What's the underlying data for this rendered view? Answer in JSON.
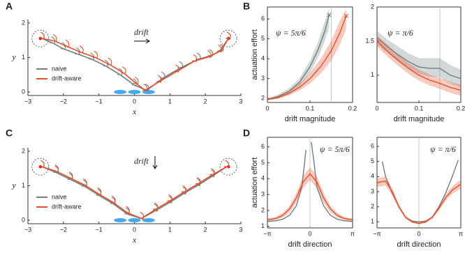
{
  "chart_data": [
    {
      "type": "trajectory",
      "panel": "A",
      "xlabel": "x",
      "ylabel": "y",
      "annotation": "drift",
      "legend": "lower left",
      "xlim": [
        -3,
        3
      ],
      "ylim": [
        -0.1,
        2.1
      ],
      "xticks": [
        {
          "value": -3,
          "label": "−3"
        },
        {
          "value": -2,
          "label": "−2"
        },
        {
          "value": -1,
          "label": "−1"
        },
        0,
        1,
        2,
        3
      ],
      "yticks": [
        0,
        1,
        2
      ],
      "targets": {
        "x": [
          -2.65,
          2.65
        ],
        "y": [
          1.55,
          1.55
        ]
      },
      "series": [
        {
          "name": "naive",
          "color": "#6e7f80",
          "x": [
            -2.6,
            -2.3,
            -2.0,
            -1.6,
            -1.2,
            -0.8,
            -0.4,
            0.0,
            0.35,
            0.8,
            1.3,
            1.8,
            2.15,
            2.45,
            2.65
          ],
          "values": [
            1.55,
            1.42,
            1.25,
            1.1,
            0.95,
            0.75,
            0.5,
            0.2,
            0.05,
            0.4,
            0.7,
            0.95,
            1.05,
            1.2,
            1.55
          ]
        },
        {
          "name": "drift-aware",
          "color": "#e2502b",
          "x": [
            -2.6,
            -2.25,
            -1.9,
            -1.5,
            -1.1,
            -0.7,
            -0.3,
            0.05,
            0.3,
            0.7,
            1.2,
            1.7,
            2.1,
            2.4,
            2.65
          ],
          "values": [
            1.55,
            1.48,
            1.32,
            1.15,
            1.0,
            0.8,
            0.55,
            0.25,
            0.05,
            0.3,
            0.6,
            0.9,
            1.02,
            1.18,
            1.55
          ]
        }
      ]
    },
    {
      "type": "line",
      "panel": "B",
      "xlabel": "drift magnitude",
      "ylabel": "actuation effort",
      "annotation": "ψ = 5π/6",
      "xlim": [
        0,
        0.2
      ],
      "ylim": [
        1.8,
        6.6
      ],
      "xticks": [
        0,
        0.1,
        0.2
      ],
      "yticks": [
        2,
        3,
        4,
        5,
        6
      ],
      "vline": 0.15,
      "series": [
        {
          "name": "naive",
          "color": "#6e7f80",
          "marker": "x",
          "x": [
            0,
            0.025,
            0.05,
            0.075,
            0.1,
            0.12,
            0.135,
            0.145
          ],
          "values": [
            1.95,
            2.1,
            2.35,
            2.8,
            3.6,
            4.5,
            5.4,
            6.2
          ],
          "lower": [
            1.9,
            2.0,
            2.2,
            2.6,
            3.3,
            4.1,
            4.9,
            5.6
          ],
          "upper": [
            2.0,
            2.2,
            2.5,
            3.0,
            3.9,
            4.9,
            5.9,
            6.5
          ]
        },
        {
          "name": "drift-aware",
          "color": "#e2502b",
          "marker": "x",
          "x": [
            0,
            0.025,
            0.05,
            0.075,
            0.1,
            0.125,
            0.15,
            0.17,
            0.185
          ],
          "values": [
            1.95,
            2.05,
            2.25,
            2.55,
            3.0,
            3.6,
            4.4,
            5.3,
            6.15
          ],
          "lower": [
            1.9,
            1.98,
            2.15,
            2.4,
            2.75,
            3.25,
            3.9,
            4.7,
            5.5
          ],
          "upper": [
            2.0,
            2.12,
            2.38,
            2.75,
            3.3,
            4.0,
            4.9,
            5.9,
            6.5
          ]
        }
      ]
    },
    {
      "type": "line",
      "panel": null,
      "xlabel": "drift magnitude",
      "ylabel": null,
      "annotation": "ψ = π/6",
      "xlim": [
        0,
        0.2
      ],
      "ylim": [
        0.6,
        2
      ],
      "xticks": [
        0,
        0.1,
        0.2
      ],
      "yticks": [
        1,
        1.5,
        2
      ],
      "vline": 0.15,
      "series": [
        {
          "name": "naive",
          "color": "#6e7f80",
          "x": [
            0,
            0.025,
            0.05,
            0.075,
            0.1,
            0.125,
            0.15,
            0.175,
            0.2
          ],
          "values": [
            1.55,
            1.42,
            1.3,
            1.2,
            1.12,
            1.1,
            1.1,
            1.0,
            0.95
          ],
          "lower": [
            1.45,
            1.33,
            1.2,
            1.1,
            1.02,
            0.98,
            0.97,
            0.88,
            0.82
          ],
          "upper": [
            1.65,
            1.52,
            1.42,
            1.32,
            1.25,
            1.25,
            1.25,
            1.15,
            1.08
          ]
        },
        {
          "name": "drift-aware",
          "color": "#e2502b",
          "x": [
            0,
            0.025,
            0.05,
            0.075,
            0.1,
            0.125,
            0.15,
            0.175,
            0.2
          ],
          "values": [
            1.5,
            1.35,
            1.22,
            1.1,
            1.0,
            0.93,
            0.88,
            0.82,
            0.78
          ],
          "lower": [
            1.42,
            1.27,
            1.14,
            1.02,
            0.92,
            0.85,
            0.8,
            0.74,
            0.7
          ],
          "upper": [
            1.58,
            1.44,
            1.3,
            1.18,
            1.08,
            1.01,
            0.96,
            0.9,
            0.86
          ]
        }
      ]
    },
    {
      "type": "trajectory",
      "panel": "C",
      "xlabel": "x",
      "ylabel": "y",
      "annotation": "drift",
      "legend": "lower left",
      "xlim": [
        -3,
        3
      ],
      "ylim": [
        -0.1,
        2.1
      ],
      "xticks": [
        {
          "value": -3,
          "label": "−3"
        },
        {
          "value": -2,
          "label": "−2"
        },
        {
          "value": -1,
          "label": "−1"
        },
        0,
        1,
        2,
        3
      ],
      "yticks": [
        0,
        1,
        2
      ],
      "targets": {
        "x": [
          -2.65,
          2.65
        ],
        "y": [
          1.55,
          1.55
        ]
      },
      "series": [
        {
          "name": "naive",
          "color": "#6e7f80",
          "x": [
            -2.6,
            -2.2,
            -1.8,
            -1.4,
            -1.0,
            -0.6,
            -0.2,
            0.2,
            0.6,
            1.0,
            1.4,
            1.8,
            2.2,
            2.6
          ],
          "values": [
            1.55,
            1.38,
            1.18,
            0.98,
            0.72,
            0.48,
            0.18,
            0.05,
            0.28,
            0.52,
            0.78,
            1.02,
            1.28,
            1.55
          ]
        },
        {
          "name": "drift-aware",
          "color": "#e2502b",
          "x": [
            -2.6,
            -2.2,
            -1.8,
            -1.4,
            -1.0,
            -0.6,
            -0.2,
            0.2,
            0.6,
            1.0,
            1.4,
            1.8,
            2.2,
            2.6
          ],
          "values": [
            1.55,
            1.42,
            1.22,
            1.02,
            0.76,
            0.52,
            0.22,
            0.05,
            0.32,
            0.56,
            0.82,
            1.06,
            1.32,
            1.55
          ]
        }
      ]
    },
    {
      "type": "line",
      "panel": "D",
      "xlabel": "drift direction",
      "ylabel": "actuation effort",
      "annotation": "ψ = 5π/6",
      "xlim": [
        -3.1416,
        3.1416
      ],
      "ylim": [
        0.9,
        6.6
      ],
      "xticks": [
        {
          "value": -3.1416,
          "label": "−π"
        },
        0,
        {
          "value": 3.1416,
          "label": "π"
        }
      ],
      "yticks": [
        1,
        2,
        3,
        4,
        5,
        6
      ],
      "vline": 0,
      "series": [
        {
          "name": "naive",
          "color": "#6e7f80",
          "x": [
            -3.14,
            -2.5,
            -2.0,
            -1.5,
            -1.0,
            -0.6,
            -0.4,
            -0.3,
            null,
            0.1,
            0.3,
            0.5,
            1.0,
            1.5,
            2.0,
            2.5,
            3.14
          ],
          "values": [
            1.3,
            1.35,
            1.45,
            1.7,
            2.3,
            3.5,
            5.0,
            5.8,
            null,
            6.3,
            5.0,
            3.5,
            2.3,
            1.7,
            1.45,
            1.35,
            1.3
          ]
        },
        {
          "name": "drift-aware",
          "color": "#e2502b",
          "x": [
            -3.14,
            -2.5,
            -2.0,
            -1.5,
            -1.0,
            -0.5,
            0,
            0.5,
            1.0,
            1.5,
            2.0,
            2.5,
            3.14
          ],
          "values": [
            1.4,
            1.5,
            1.7,
            2.1,
            2.8,
            3.8,
            4.3,
            3.8,
            2.8,
            2.1,
            1.7,
            1.5,
            1.4
          ],
          "lower": [
            1.3,
            1.4,
            1.55,
            1.9,
            2.5,
            3.4,
            3.9,
            3.4,
            2.5,
            1.9,
            1.55,
            1.4,
            1.3
          ],
          "upper": [
            1.5,
            1.6,
            1.85,
            2.3,
            3.1,
            4.2,
            4.7,
            4.2,
            3.1,
            2.3,
            1.85,
            1.6,
            1.5
          ]
        }
      ]
    },
    {
      "type": "line",
      "panel": null,
      "xlabel": "drift direction",
      "ylabel": null,
      "annotation": "ψ = π/6",
      "xlim": [
        -3.1416,
        3.1416
      ],
      "ylim": [
        0.6,
        6.6
      ],
      "xticks": [
        {
          "value": -3.1416,
          "label": "−π"
        },
        0,
        {
          "value": 3.1416,
          "label": "π"
        }
      ],
      "yticks": [
        1,
        2,
        3,
        4,
        5,
        6
      ],
      "vline": 0,
      "series": [
        {
          "name": "naive",
          "color": "#6e7f80",
          "x": [
            -2.75,
            -2.5,
            -2.0,
            -1.5,
            -1.0,
            -0.5,
            0,
            0.5,
            1.0,
            1.5,
            2.0,
            2.5,
            2.95
          ],
          "values": [
            5.0,
            4.0,
            2.9,
            2.0,
            1.3,
            1.05,
            1.0,
            1.05,
            1.3,
            2.0,
            2.9,
            4.0,
            5.1
          ]
        },
        {
          "name": "drift-aware",
          "color": "#e2502b",
          "x": [
            -3.14,
            -2.5,
            -2.0,
            -1.5,
            -1.0,
            -0.5,
            0,
            0.5,
            1.0,
            1.5,
            2.0,
            2.5,
            3.14
          ],
          "values": [
            3.6,
            3.7,
            3.0,
            2.0,
            1.3,
            1.0,
            0.9,
            1.0,
            1.3,
            1.9,
            2.6,
            3.1,
            3.5
          ],
          "lower": [
            3.3,
            3.4,
            2.75,
            1.85,
            1.2,
            0.92,
            0.82,
            0.92,
            1.2,
            1.75,
            2.4,
            2.85,
            3.2
          ],
          "upper": [
            3.9,
            4.0,
            3.25,
            2.15,
            1.4,
            1.08,
            0.98,
            1.08,
            1.4,
            2.05,
            2.8,
            3.35,
            3.8
          ]
        }
      ]
    }
  ]
}
